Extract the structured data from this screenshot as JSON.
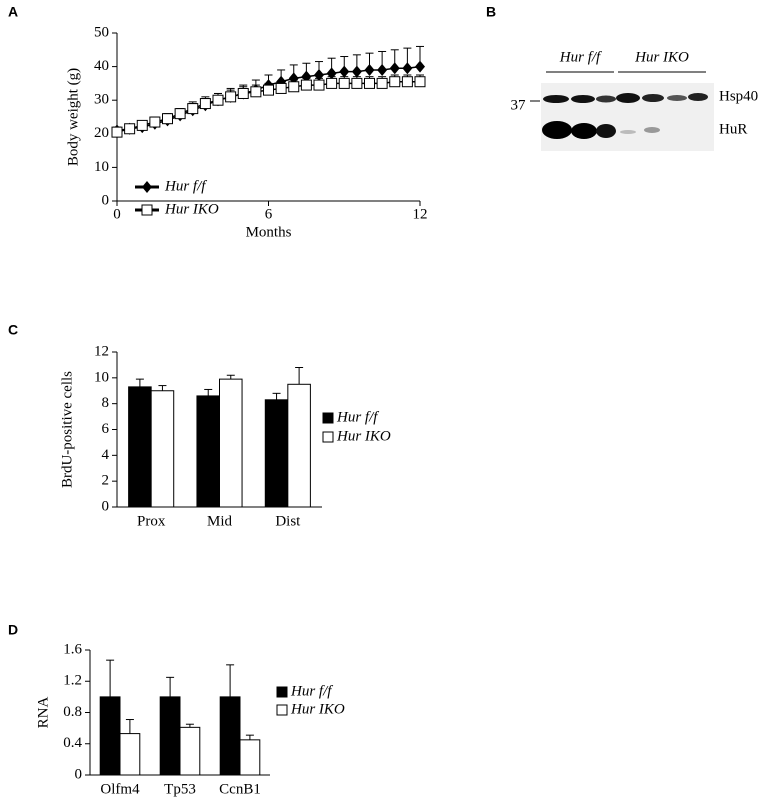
{
  "chart_data": [
    {
      "type": "line",
      "panel": "A",
      "ylabel": "Body weight (g)",
      "xlabel": "Months",
      "xlim": [
        0,
        12
      ],
      "xticks": [
        0,
        6,
        12
      ],
      "ylim": [
        0,
        50
      ],
      "yticks": [
        0,
        10,
        20,
        30,
        40,
        50
      ],
      "x": [
        0,
        0.5,
        1,
        1.5,
        2,
        2.5,
        3,
        3.5,
        4,
        4.5,
        5,
        5.5,
        6,
        6.5,
        7,
        7.5,
        8,
        8.5,
        9,
        9.5,
        10,
        10.5,
        11,
        11.5,
        12
      ],
      "series": [
        {
          "name": "Hur f/f",
          "color": "#000000",
          "values": [
            21,
            21.5,
            22,
            23,
            24,
            25.5,
            27,
            28.5,
            30,
            31,
            32,
            33,
            34.5,
            35.5,
            36.5,
            37,
            37.5,
            38,
            38.5,
            38.5,
            39,
            39,
            39.5,
            39.5,
            40
          ],
          "errors": [
            1,
            1,
            1,
            1.5,
            1.5,
            1.5,
            2,
            2,
            2,
            2.5,
            2.5,
            3,
            3,
            3.5,
            4,
            4,
            4,
            4.5,
            4.5,
            5,
            5,
            5.5,
            5.5,
            6,
            6
          ]
        },
        {
          "name": "Hur IKO",
          "color": "#ffffff",
          "values": [
            20.5,
            21.5,
            22.5,
            23.5,
            24.5,
            26,
            27.5,
            29,
            30,
            31,
            32,
            32.5,
            33,
            33.5,
            34,
            34.5,
            34.5,
            35,
            35,
            35,
            35,
            35,
            35.5,
            35.5,
            35.5
          ],
          "errors": [
            1,
            1,
            1,
            1.5,
            1.5,
            1.5,
            2,
            2,
            2,
            2,
            2,
            2,
            2,
            2,
            2,
            2,
            2,
            2,
            2,
            2,
            2,
            2,
            2,
            2,
            2
          ]
        }
      ]
    },
    {
      "type": "bar",
      "panel": "C",
      "ylabel": "BrdU-positive cells",
      "categories": [
        "Prox",
        "Mid",
        "Dist"
      ],
      "ylim": [
        0,
        12
      ],
      "yticks": [
        0,
        2,
        4,
        6,
        8,
        10,
        12
      ],
      "series": [
        {
          "name": "Hur f/f",
          "color": "#000000",
          "values": [
            9.3,
            8.6,
            8.3
          ],
          "errors": [
            0.6,
            0.5,
            0.5
          ]
        },
        {
          "name": "Hur IKO",
          "color": "#ffffff",
          "values": [
            9.0,
            9.9,
            9.5
          ],
          "errors": [
            0.4,
            0.3,
            1.3
          ]
        }
      ]
    },
    {
      "type": "bar",
      "panel": "D",
      "ylabel": "RNA",
      "categories": [
        "Olfm4",
        "Tp53",
        "CcnB1"
      ],
      "ylim": [
        0,
        1.6
      ],
      "yticks": [
        0,
        0.4,
        0.8,
        1.2,
        1.6
      ],
      "series": [
        {
          "name": "Hur f/f",
          "color": "#000000",
          "values": [
            1,
            1,
            1
          ],
          "errors": [
            0.47,
            0.25,
            0.41
          ]
        },
        {
          "name": "Hur IKO",
          "color": "#ffffff",
          "values": [
            0.53,
            0.61,
            0.45
          ],
          "errors": [
            0.18,
            0.04,
            0.06
          ]
        }
      ]
    }
  ],
  "blot": {
    "panel": "B",
    "groups": [
      "Hur f/f",
      "Hur IKO"
    ],
    "marker": "37",
    "bands": [
      "Hsp40",
      "HuR"
    ]
  }
}
